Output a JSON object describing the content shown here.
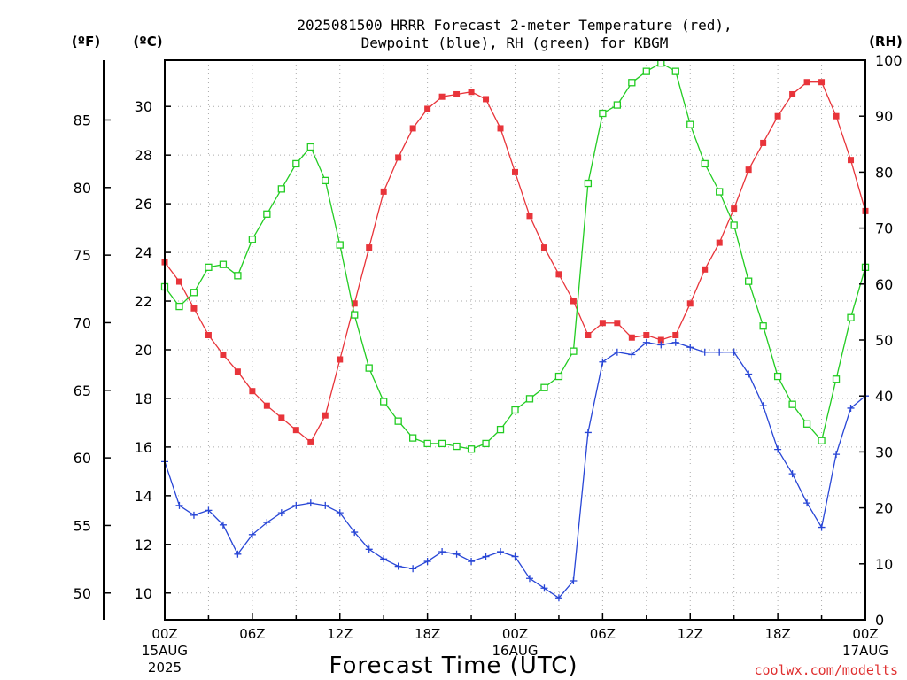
{
  "chart_data": {
    "type": "line",
    "title_line1": "2025081500 HRRR Forecast 2-meter Temperature (red),",
    "title_line2": "Dewpoint (blue), RH (green) for KBGM",
    "xlabel": "Forecast Time (UTC)",
    "credit": "coolwx.com/modelts",
    "unit_f": "(ºF)",
    "unit_c": "(ºC)",
    "unit_rh": "(RH)",
    "xlim": [
      0,
      48
    ],
    "ylim_c": [
      8.9,
      31.9
    ],
    "ylim_rh": [
      0,
      100
    ],
    "x_ticks": [
      {
        "x": 0,
        "l1": "00Z",
        "l2": "15AUG",
        "l3": "2025"
      },
      {
        "x": 6,
        "l1": "06Z",
        "l2": "",
        "l3": ""
      },
      {
        "x": 12,
        "l1": "12Z",
        "l2": "",
        "l3": ""
      },
      {
        "x": 18,
        "l1": "18Z",
        "l2": "",
        "l3": ""
      },
      {
        "x": 24,
        "l1": "00Z",
        "l2": "16AUG",
        "l3": ""
      },
      {
        "x": 30,
        "l1": "06Z",
        "l2": "",
        "l3": ""
      },
      {
        "x": 36,
        "l1": "12Z",
        "l2": "",
        "l3": ""
      },
      {
        "x": 42,
        "l1": "18Z",
        "l2": "",
        "l3": ""
      },
      {
        "x": 48,
        "l1": "00Z",
        "l2": "17AUG",
        "l3": ""
      }
    ],
    "c_ticks": [
      10,
      12,
      14,
      16,
      18,
      20,
      22,
      24,
      26,
      28,
      30
    ],
    "f_ticks": [
      50,
      55,
      60,
      65,
      70,
      75,
      80,
      85
    ],
    "rh_ticks": [
      0,
      10,
      20,
      30,
      40,
      50,
      60,
      70,
      80,
      90,
      100
    ],
    "grid": true,
    "colors": {
      "temperature": "#e8343a",
      "dewpoint": "#2846d6",
      "rh": "#22cc22"
    },
    "series": [
      {
        "name": "Temperature (red)",
        "axis": "c",
        "marker": "filled-square",
        "values": [
          23.6,
          22.8,
          21.7,
          20.6,
          19.8,
          19.1,
          18.3,
          17.7,
          17.2,
          16.7,
          16.2,
          17.3,
          19.6,
          21.9,
          24.2,
          26.5,
          27.9,
          29.1,
          29.9,
          30.4,
          30.5,
          30.6,
          30.3,
          29.1,
          27.3,
          25.5,
          24.2,
          23.1,
          22.0,
          20.6,
          21.1,
          21.1,
          20.5,
          20.6,
          20.4,
          20.6,
          21.9,
          23.3,
          24.4,
          25.8,
          27.4,
          28.5,
          29.6,
          30.5,
          31.0,
          31.0,
          29.6,
          27.8,
          25.7
        ]
      },
      {
        "name": "Dewpoint (blue)",
        "axis": "c",
        "marker": "plus",
        "values": [
          15.4,
          13.6,
          13.2,
          13.4,
          12.8,
          11.6,
          12.4,
          12.9,
          13.3,
          13.6,
          13.7,
          13.6,
          13.3,
          12.5,
          11.8,
          11.4,
          11.1,
          11.0,
          11.3,
          11.7,
          11.6,
          11.3,
          11.5,
          11.7,
          11.5,
          10.6,
          10.2,
          9.8,
          10.5,
          16.6,
          19.5,
          19.9,
          19.8,
          20.3,
          20.2,
          20.3,
          20.1,
          19.9,
          19.9,
          19.9,
          19.0,
          17.7,
          15.9,
          14.9,
          13.7,
          12.7,
          15.7,
          17.6,
          18.1
        ]
      },
      {
        "name": "RH (green)",
        "axis": "rh",
        "marker": "open-square",
        "values": [
          59.5,
          56.0,
          58.5,
          63.0,
          63.5,
          61.5,
          68.0,
          72.5,
          77.0,
          81.5,
          84.5,
          78.5,
          67.0,
          54.5,
          45.0,
          39.0,
          35.5,
          32.5,
          31.5,
          31.5,
          31.0,
          30.5,
          31.5,
          34.0,
          37.5,
          39.5,
          41.5,
          43.5,
          48.0,
          78.0,
          90.5,
          92.0,
          96.0,
          98.0,
          99.5,
          98.0,
          88.5,
          81.5,
          76.5,
          70.5,
          60.5,
          52.5,
          43.5,
          38.5,
          35.0,
          32.0,
          43.0,
          54.0,
          63.0
        ]
      }
    ]
  }
}
